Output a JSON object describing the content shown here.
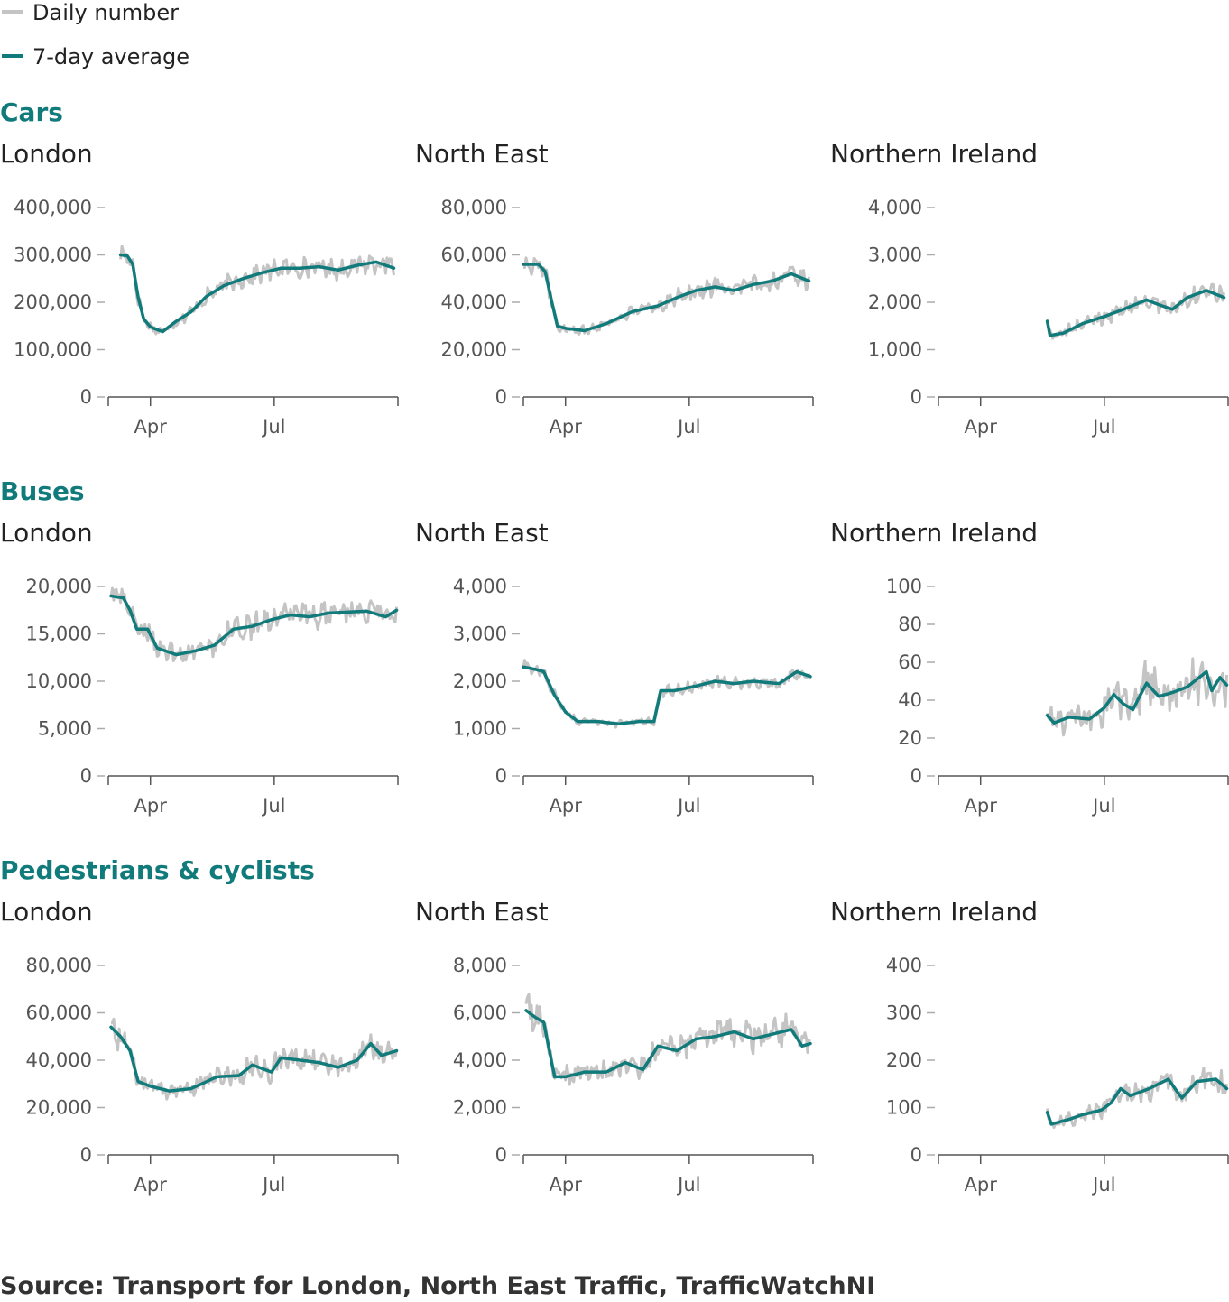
{
  "legend": {
    "items": [
      {
        "label": "Daily number",
        "color": "#c4c4c4"
      },
      {
        "label": "7-day average",
        "color": "#117a7a"
      }
    ]
  },
  "colors": {
    "accent": "#117a7a",
    "daily": "#c4c4c4",
    "text": "#222222",
    "axis": "#555555",
    "tick": "#aaaaaa"
  },
  "sections": [
    {
      "title": "Cars"
    },
    {
      "title": "Buses"
    },
    {
      "title": "Pedestrians & cyclists"
    }
  ],
  "source": "Source: Transport for London, North East Traffic, TrafficWatchNI",
  "chart_data": [
    {
      "section": "Cars",
      "title": "London",
      "type": "line",
      "x_unit": "date",
      "xlim": [
        "2020-03-01",
        "2020-09-30"
      ],
      "x_ticks": [
        {
          "date": "2020-04-01",
          "label": "Apr"
        },
        {
          "date": "2020-07-01",
          "label": "Jul"
        }
      ],
      "ylim": [
        0,
        400000
      ],
      "y_ticks": [
        {
          "value": 0,
          "label": "0"
        },
        {
          "value": 100000,
          "label": "100,000"
        },
        {
          "value": 200000,
          "label": "200,000"
        },
        {
          "value": 300000,
          "label": "300,000"
        },
        {
          "value": 400000,
          "label": "400,000"
        }
      ],
      "noise": 0.06,
      "series_names": [
        "Daily number",
        "7-day average"
      ],
      "avg": [
        [
          "2020-03-10",
          300000
        ],
        [
          "2020-03-15",
          298000
        ],
        [
          "2020-03-19",
          280000
        ],
        [
          "2020-03-23",
          210000
        ],
        [
          "2020-03-27",
          165000
        ],
        [
          "2020-04-01",
          148000
        ],
        [
          "2020-04-06",
          142000
        ],
        [
          "2020-04-10",
          138000
        ],
        [
          "2020-04-20",
          160000
        ],
        [
          "2020-05-01",
          180000
        ],
        [
          "2020-05-12",
          212000
        ],
        [
          "2020-05-25",
          235000
        ],
        [
          "2020-06-08",
          250000
        ],
        [
          "2020-06-22",
          262000
        ],
        [
          "2020-07-06",
          272000
        ],
        [
          "2020-07-20",
          272000
        ],
        [
          "2020-08-03",
          275000
        ],
        [
          "2020-08-17",
          268000
        ],
        [
          "2020-08-31",
          278000
        ],
        [
          "2020-09-14",
          285000
        ],
        [
          "2020-09-27",
          272000
        ]
      ]
    },
    {
      "section": "Cars",
      "title": "North East",
      "type": "line",
      "x_unit": "date",
      "xlim": [
        "2020-03-01",
        "2020-09-30"
      ],
      "x_ticks": [
        {
          "date": "2020-04-01",
          "label": "Apr"
        },
        {
          "date": "2020-07-01",
          "label": "Jul"
        }
      ],
      "ylim": [
        0,
        80000
      ],
      "y_ticks": [
        {
          "value": 0,
          "label": "0"
        },
        {
          "value": 20000,
          "label": "20,000"
        },
        {
          "value": 40000,
          "label": "40,000"
        },
        {
          "value": 60000,
          "label": "60,000"
        },
        {
          "value": 80000,
          "label": "80,000"
        }
      ],
      "noise": 0.06,
      "series_names": [
        "Daily number",
        "7-day average"
      ],
      "avg": [
        [
          "2020-03-01",
          56000
        ],
        [
          "2020-03-12",
          56000
        ],
        [
          "2020-03-17",
          53000
        ],
        [
          "2020-03-22",
          40000
        ],
        [
          "2020-03-26",
          30000
        ],
        [
          "2020-04-01",
          29000
        ],
        [
          "2020-04-15",
          28000
        ],
        [
          "2020-05-01",
          31000
        ],
        [
          "2020-05-20",
          36000
        ],
        [
          "2020-06-08",
          38500
        ],
        [
          "2020-06-22",
          42000
        ],
        [
          "2020-07-06",
          45000
        ],
        [
          "2020-07-20",
          46500
        ],
        [
          "2020-08-03",
          45000
        ],
        [
          "2020-08-17",
          47500
        ],
        [
          "2020-08-31",
          49000
        ],
        [
          "2020-09-14",
          52000
        ],
        [
          "2020-09-27",
          49000
        ]
      ]
    },
    {
      "section": "Cars",
      "title": "Northern Ireland",
      "type": "line",
      "x_unit": "date",
      "xlim": [
        "2020-03-01",
        "2020-09-30"
      ],
      "x_ticks": [
        {
          "date": "2020-04-01",
          "label": "Apr"
        },
        {
          "date": "2020-07-01",
          "label": "Jul"
        }
      ],
      "ylim": [
        0,
        4000
      ],
      "y_ticks": [
        {
          "value": 0,
          "label": "0"
        },
        {
          "value": 1000,
          "label": "1,000"
        },
        {
          "value": 2000,
          "label": "2,000"
        },
        {
          "value": 3000,
          "label": "3,000"
        },
        {
          "value": 4000,
          "label": "4,000"
        }
      ],
      "noise": 0.07,
      "series_names": [
        "Daily number",
        "7-day average"
      ],
      "avg": [
        [
          "2020-05-20",
          1600
        ],
        [
          "2020-05-22",
          1300
        ],
        [
          "2020-06-01",
          1350
        ],
        [
          "2020-06-15",
          1550
        ],
        [
          "2020-07-01",
          1700
        ],
        [
          "2020-07-15",
          1850
        ],
        [
          "2020-08-01",
          2050
        ],
        [
          "2020-08-10",
          1950
        ],
        [
          "2020-08-20",
          1850
        ],
        [
          "2020-08-31",
          2100
        ],
        [
          "2020-09-14",
          2250
        ],
        [
          "2020-09-27",
          2100
        ]
      ]
    },
    {
      "section": "Buses",
      "title": "London",
      "type": "line",
      "x_unit": "date",
      "xlim": [
        "2020-03-01",
        "2020-09-30"
      ],
      "x_ticks": [
        {
          "date": "2020-04-01",
          "label": "Apr"
        },
        {
          "date": "2020-07-01",
          "label": "Jul"
        }
      ],
      "ylim": [
        0,
        20000
      ],
      "y_ticks": [
        {
          "value": 0,
          "label": "0"
        },
        {
          "value": 5000,
          "label": "5,000"
        },
        {
          "value": 10000,
          "label": "10,000"
        },
        {
          "value": 15000,
          "label": "15,000"
        },
        {
          "value": 20000,
          "label": "20,000"
        }
      ],
      "noise": 0.06,
      "series_names": [
        "Daily number",
        "7-day average"
      ],
      "avg": [
        [
          "2020-03-03",
          19000
        ],
        [
          "2020-03-12",
          18800
        ],
        [
          "2020-03-17",
          17500
        ],
        [
          "2020-03-22",
          15500
        ],
        [
          "2020-03-30",
          15500
        ],
        [
          "2020-04-06",
          13500
        ],
        [
          "2020-04-20",
          12800
        ],
        [
          "2020-05-04",
          13200
        ],
        [
          "2020-05-18",
          13800
        ],
        [
          "2020-06-01",
          15500
        ],
        [
          "2020-06-15",
          15800
        ],
        [
          "2020-06-29",
          16500
        ],
        [
          "2020-07-13",
          17000
        ],
        [
          "2020-07-27",
          16800
        ],
        [
          "2020-08-10",
          17200
        ],
        [
          "2020-08-24",
          17300
        ],
        [
          "2020-09-07",
          17400
        ],
        [
          "2020-09-21",
          16800
        ],
        [
          "2020-09-29",
          17500
        ]
      ]
    },
    {
      "section": "Buses",
      "title": "North East",
      "type": "line",
      "x_unit": "date",
      "xlim": [
        "2020-03-01",
        "2020-09-30"
      ],
      "x_ticks": [
        {
          "date": "2020-04-01",
          "label": "Apr"
        },
        {
          "date": "2020-07-01",
          "label": "Jul"
        }
      ],
      "ylim": [
        0,
        4000
      ],
      "y_ticks": [
        {
          "value": 0,
          "label": "0"
        },
        {
          "value": 1000,
          "label": "1,000"
        },
        {
          "value": 2000,
          "label": "2,000"
        },
        {
          "value": 3000,
          "label": "3,000"
        },
        {
          "value": 4000,
          "label": "4,000"
        }
      ],
      "noise": 0.05,
      "series_names": [
        "Daily number",
        "7-day average"
      ],
      "avg": [
        [
          "2020-03-01",
          2300
        ],
        [
          "2020-03-10",
          2250
        ],
        [
          "2020-03-16",
          2200
        ],
        [
          "2020-03-24",
          1700
        ],
        [
          "2020-04-01",
          1350
        ],
        [
          "2020-04-10",
          1150
        ],
        [
          "2020-04-25",
          1150
        ],
        [
          "2020-05-10",
          1100
        ],
        [
          "2020-05-25",
          1150
        ],
        [
          "2020-06-05",
          1150
        ],
        [
          "2020-06-10",
          1800
        ],
        [
          "2020-06-20",
          1800
        ],
        [
          "2020-07-06",
          1900
        ],
        [
          "2020-07-20",
          2000
        ],
        [
          "2020-08-03",
          1950
        ],
        [
          "2020-08-17",
          2000
        ],
        [
          "2020-09-05",
          1950
        ],
        [
          "2020-09-18",
          2200
        ],
        [
          "2020-09-28",
          2100
        ]
      ]
    },
    {
      "section": "Buses",
      "title": "Northern Ireland",
      "type": "line",
      "x_unit": "date",
      "xlim": [
        "2020-03-01",
        "2020-09-30"
      ],
      "x_ticks": [
        {
          "date": "2020-04-01",
          "label": "Apr"
        },
        {
          "date": "2020-07-01",
          "label": "Jul"
        }
      ],
      "ylim": [
        0,
        100
      ],
      "y_ticks": [
        {
          "value": 0,
          "label": "0"
        },
        {
          "value": 20,
          "label": "20"
        },
        {
          "value": 40,
          "label": "40"
        },
        {
          "value": 60,
          "label": "60"
        },
        {
          "value": 80,
          "label": "80"
        },
        {
          "value": 100,
          "label": "100"
        }
      ],
      "noise": 0.2,
      "series_names": [
        "Daily number",
        "7-day average"
      ],
      "avg": [
        [
          "2020-05-20",
          32
        ],
        [
          "2020-05-25",
          28
        ],
        [
          "2020-06-05",
          31
        ],
        [
          "2020-06-20",
          30
        ],
        [
          "2020-07-01",
          36
        ],
        [
          "2020-07-08",
          43
        ],
        [
          "2020-07-15",
          38
        ],
        [
          "2020-07-22",
          35
        ],
        [
          "2020-08-01",
          49
        ],
        [
          "2020-08-10",
          42
        ],
        [
          "2020-08-20",
          44
        ],
        [
          "2020-08-31",
          47
        ],
        [
          "2020-09-14",
          55
        ],
        [
          "2020-09-18",
          45
        ],
        [
          "2020-09-24",
          52
        ],
        [
          "2020-09-29",
          48
        ]
      ]
    },
    {
      "section": "Pedestrians & cyclists",
      "title": "London",
      "type": "line",
      "x_unit": "date",
      "xlim": [
        "2020-03-01",
        "2020-09-30"
      ],
      "x_ticks": [
        {
          "date": "2020-04-01",
          "label": "Apr"
        },
        {
          "date": "2020-07-01",
          "label": "Jul"
        }
      ],
      "ylim": [
        0,
        80000
      ],
      "y_ticks": [
        {
          "value": 0,
          "label": "0"
        },
        {
          "value": 20000,
          "label": "20,000"
        },
        {
          "value": 40000,
          "label": "40,000"
        },
        {
          "value": 60000,
          "label": "60,000"
        },
        {
          "value": 80000,
          "label": "80,000"
        }
      ],
      "noise": 0.1,
      "series_names": [
        "Daily number",
        "7-day average"
      ],
      "avg": [
        [
          "2020-03-03",
          54000
        ],
        [
          "2020-03-10",
          50000
        ],
        [
          "2020-03-17",
          44000
        ],
        [
          "2020-03-23",
          31000
        ],
        [
          "2020-04-01",
          29000
        ],
        [
          "2020-04-15",
          27000
        ],
        [
          "2020-05-01",
          28000
        ],
        [
          "2020-05-20",
          33000
        ],
        [
          "2020-06-05",
          33500
        ],
        [
          "2020-06-15",
          38000
        ],
        [
          "2020-06-29",
          35000
        ],
        [
          "2020-07-06",
          41000
        ],
        [
          "2020-07-20",
          40000
        ],
        [
          "2020-08-03",
          39000
        ],
        [
          "2020-08-17",
          37000
        ],
        [
          "2020-08-31",
          40000
        ],
        [
          "2020-09-10",
          47000
        ],
        [
          "2020-09-18",
          42000
        ],
        [
          "2020-09-29",
          44000
        ]
      ]
    },
    {
      "section": "Pedestrians & cyclists",
      "title": "North East",
      "type": "line",
      "x_unit": "date",
      "xlim": [
        "2020-03-01",
        "2020-09-30"
      ],
      "x_ticks": [
        {
          "date": "2020-04-01",
          "label": "Apr"
        },
        {
          "date": "2020-07-01",
          "label": "Jul"
        }
      ],
      "ylim": [
        0,
        8000
      ],
      "y_ticks": [
        {
          "value": 0,
          "label": "0"
        },
        {
          "value": 2000,
          "label": "2,000"
        },
        {
          "value": 4000,
          "label": "4,000"
        },
        {
          "value": 6000,
          "label": "6,000"
        },
        {
          "value": 8000,
          "label": "8,000"
        }
      ],
      "noise": 0.1,
      "series_names": [
        "Daily number",
        "7-day average"
      ],
      "avg": [
        [
          "2020-03-03",
          6100
        ],
        [
          "2020-03-10",
          5800
        ],
        [
          "2020-03-16",
          5600
        ],
        [
          "2020-03-24",
          3300
        ],
        [
          "2020-04-01",
          3300
        ],
        [
          "2020-04-15",
          3500
        ],
        [
          "2020-05-01",
          3500
        ],
        [
          "2020-05-15",
          3900
        ],
        [
          "2020-05-28",
          3600
        ],
        [
          "2020-06-08",
          4600
        ],
        [
          "2020-06-22",
          4400
        ],
        [
          "2020-07-06",
          4900
        ],
        [
          "2020-07-20",
          5000
        ],
        [
          "2020-08-03",
          5200
        ],
        [
          "2020-08-17",
          4900
        ],
        [
          "2020-08-31",
          5100
        ],
        [
          "2020-09-14",
          5300
        ],
        [
          "2020-09-22",
          4600
        ],
        [
          "2020-09-28",
          4700
        ]
      ]
    },
    {
      "section": "Pedestrians & cyclists",
      "title": "Northern Ireland",
      "type": "line",
      "x_unit": "date",
      "xlim": [
        "2020-03-01",
        "2020-09-30"
      ],
      "x_ticks": [
        {
          "date": "2020-04-01",
          "label": "Apr"
        },
        {
          "date": "2020-07-01",
          "label": "Jul"
        }
      ],
      "ylim": [
        0,
        400
      ],
      "y_ticks": [
        {
          "value": 0,
          "label": "0"
        },
        {
          "value": 100,
          "label": "100"
        },
        {
          "value": 200,
          "label": "200"
        },
        {
          "value": 300,
          "label": "300"
        },
        {
          "value": 400,
          "label": "400"
        }
      ],
      "noise": 0.15,
      "series_names": [
        "Daily number",
        "7-day average"
      ],
      "avg": [
        [
          "2020-05-20",
          90
        ],
        [
          "2020-05-23",
          65
        ],
        [
          "2020-06-05",
          75
        ],
        [
          "2020-06-15",
          85
        ],
        [
          "2020-06-29",
          95
        ],
        [
          "2020-07-06",
          110
        ],
        [
          "2020-07-13",
          140
        ],
        [
          "2020-07-20",
          125
        ],
        [
          "2020-08-03",
          140
        ],
        [
          "2020-08-17",
          160
        ],
        [
          "2020-08-27",
          120
        ],
        [
          "2020-09-07",
          155
        ],
        [
          "2020-09-21",
          160
        ],
        [
          "2020-09-29",
          140
        ]
      ]
    }
  ]
}
